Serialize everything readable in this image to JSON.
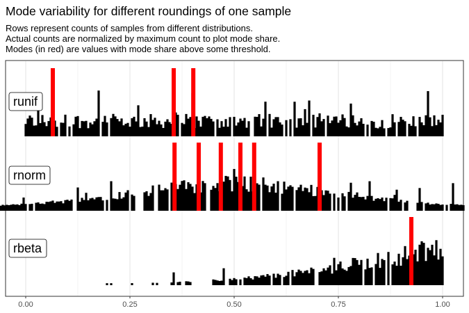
{
  "chart_data": {
    "type": "bar",
    "title": "Mode variability for different roundings of one sample",
    "subtitle": [
      "Rows represent counts of samples from different distributions.",
      "Actual counts are normalized by maximum count to plot mode share.",
      "Modes (in red) are values with mode share above some threshold."
    ],
    "xlabel": "",
    "ylabel": "",
    "xlim": [
      -0.1,
      1.05
    ],
    "x_ticks": [
      0.0,
      0.25,
      0.5,
      0.75,
      1.0
    ],
    "x_tick_labels": [
      "0.00",
      "0.25",
      "0.50",
      "0.75",
      "1.00"
    ],
    "mode_color": "#ff0000",
    "bar_color": "#000000",
    "rows": [
      {
        "name": "runif",
        "x_range": [
          0.0,
          1.0
        ],
        "modes": [
          0.065,
          0.355,
          0.402
        ]
      },
      {
        "name": "rnorm",
        "x_range": [
          -0.1,
          1.05
        ],
        "modes": [
          0.357,
          0.415,
          0.468,
          0.515,
          0.548,
          0.705
        ]
      },
      {
        "name": "rbeta",
        "x_range": [
          0.19,
          1.0
        ],
        "modes": [
          0.925
        ]
      }
    ]
  }
}
